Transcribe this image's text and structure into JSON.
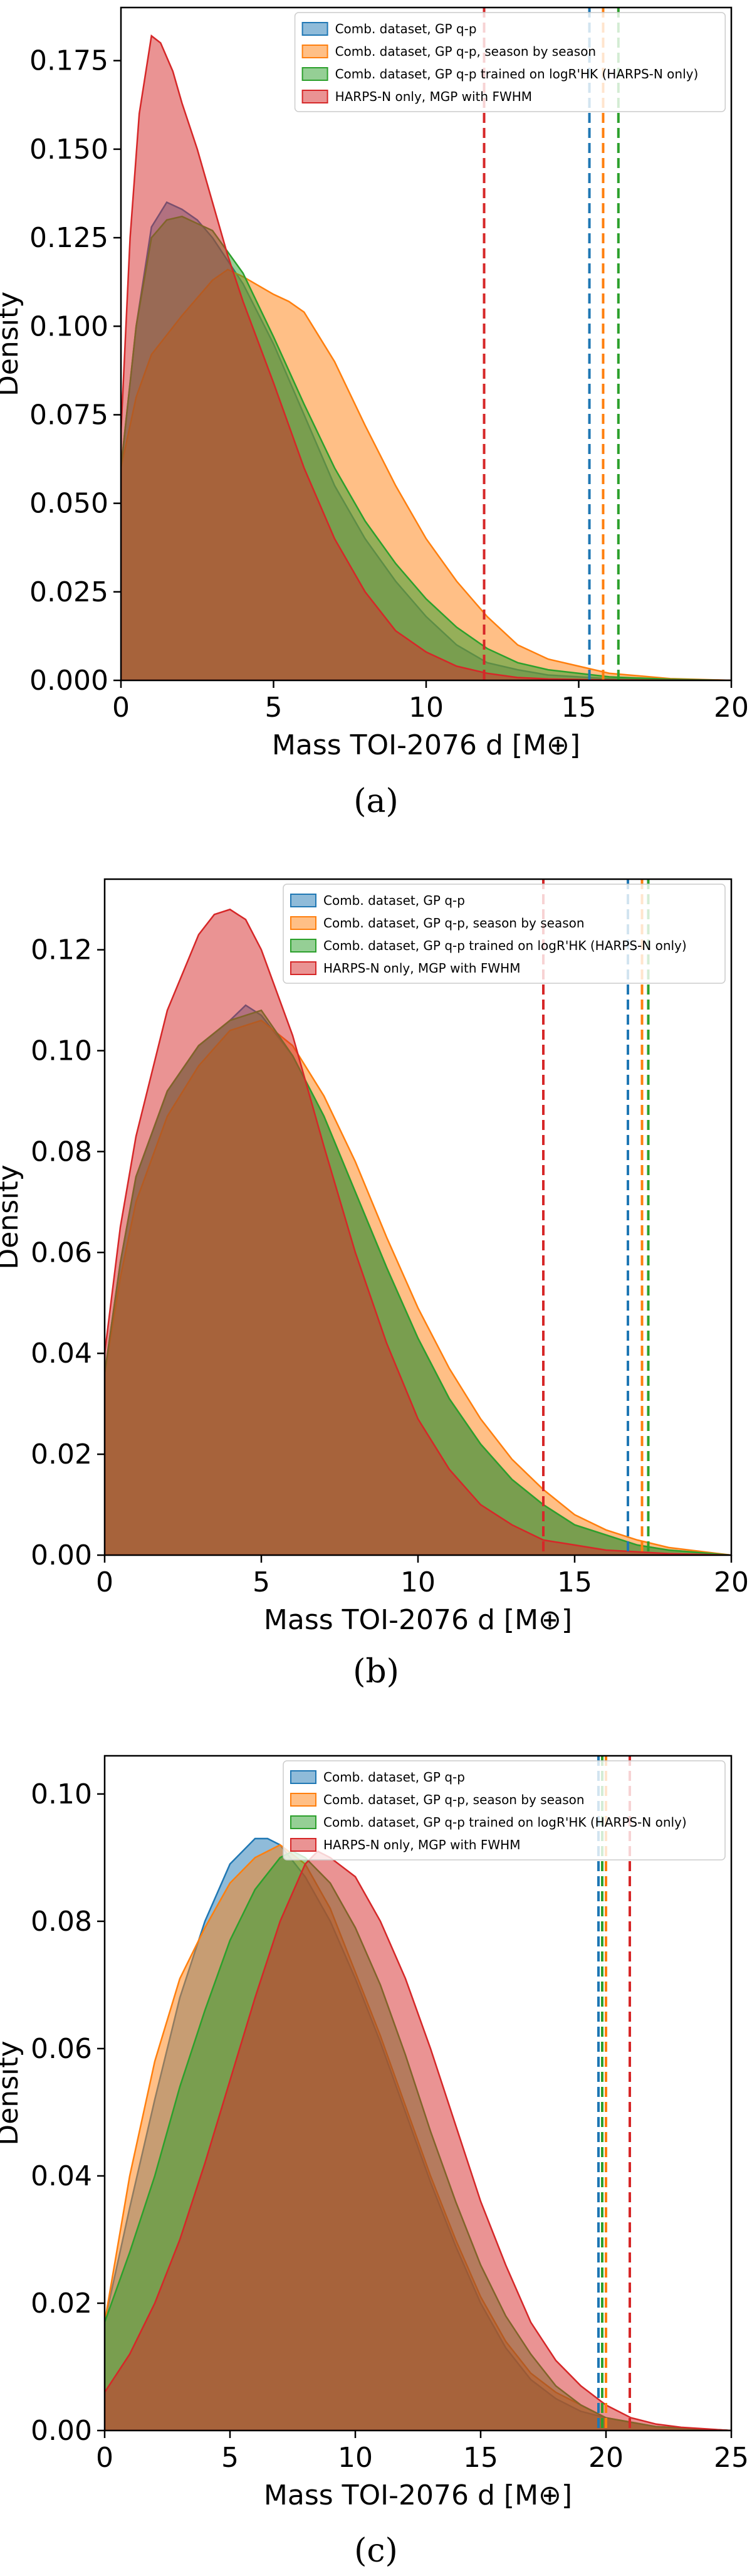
{
  "series_colors": {
    "blue": "#1f77b4",
    "orange": "#ff7f0e",
    "green": "#2ca02c",
    "red": "#d62728"
  },
  "chart_data": [
    {
      "type": "area",
      "caption": "(a)",
      "xlabel": "Mass TOI-2076 d [M⊕]",
      "ylabel": "Density",
      "xlim": [
        0,
        20
      ],
      "ylim": [
        0,
        0.19
      ],
      "xticks": [
        0,
        5,
        10,
        15,
        20
      ],
      "yticks": [
        0.0,
        0.025,
        0.05,
        0.075,
        0.1,
        0.125,
        0.15,
        0.175
      ],
      "ytick_labels": [
        "0.000",
        "0.025",
        "0.050",
        "0.075",
        "0.100",
        "0.125",
        "0.150",
        "0.175"
      ],
      "legend_position": "upper-right",
      "series": [
        {
          "name": "Comb. dataset, GP q-p",
          "color": "blue",
          "x": [
            0,
            0.5,
            1,
            1.5,
            2,
            2.5,
            3,
            4,
            5,
            6,
            7,
            8,
            9,
            10,
            11,
            12,
            13,
            14,
            16,
            18,
            20
          ],
          "y": [
            0.06,
            0.1,
            0.128,
            0.135,
            0.133,
            0.13,
            0.125,
            0.112,
            0.095,
            0.075,
            0.055,
            0.04,
            0.028,
            0.018,
            0.01,
            0.005,
            0.003,
            0.0015,
            0.0005,
            0.0002,
            0
          ]
        },
        {
          "name": "Comb. dataset, GP q-p, season by season",
          "color": "orange",
          "x": [
            0,
            0.5,
            1,
            2,
            2.5,
            3,
            3.5,
            4,
            5,
            5.5,
            6,
            7,
            8,
            9,
            10,
            11,
            12,
            13,
            14,
            15,
            16,
            18,
            20
          ],
          "y": [
            0.06,
            0.08,
            0.092,
            0.103,
            0.108,
            0.113,
            0.116,
            0.114,
            0.109,
            0.107,
            0.104,
            0.09,
            0.072,
            0.055,
            0.04,
            0.028,
            0.018,
            0.01,
            0.006,
            0.004,
            0.002,
            0.0005,
            0
          ]
        },
        {
          "name": "Comb. dataset, GP q-p trained on logR'HK (HARPS-N only)",
          "color": "green",
          "x": [
            0,
            0.5,
            1,
            1.5,
            2,
            3,
            4,
            5,
            6,
            7,
            8,
            9,
            10,
            11,
            12,
            13,
            14,
            16,
            18,
            20
          ],
          "y": [
            0.06,
            0.1,
            0.125,
            0.13,
            0.131,
            0.127,
            0.115,
            0.097,
            0.078,
            0.06,
            0.045,
            0.033,
            0.023,
            0.015,
            0.009,
            0.005,
            0.003,
            0.001,
            0.0003,
            0
          ]
        },
        {
          "name": "HARPS-N only, MGP with FWHM",
          "color": "red",
          "x": [
            0,
            0.3,
            0.6,
            1,
            1.3,
            1.7,
            2,
            2.5,
            3,
            3.5,
            4,
            5,
            6,
            7,
            8,
            9,
            10,
            11,
            12,
            13,
            14,
            16,
            20
          ],
          "y": [
            0.07,
            0.125,
            0.16,
            0.182,
            0.18,
            0.172,
            0.163,
            0.15,
            0.135,
            0.12,
            0.107,
            0.084,
            0.06,
            0.04,
            0.025,
            0.014,
            0.008,
            0.004,
            0.002,
            0.0008,
            0.0004,
            0.0001,
            0
          ]
        }
      ],
      "vlines": [
        {
          "color": "red",
          "x": 11.9
        },
        {
          "color": "blue",
          "x": 15.35
        },
        {
          "color": "orange",
          "x": 15.8
        },
        {
          "color": "green",
          "x": 16.3
        }
      ]
    },
    {
      "type": "area",
      "caption": "(b)",
      "xlabel": "Mass TOI-2076 d [M⊕]",
      "ylabel": "Density",
      "xlim": [
        0,
        20
      ],
      "ylim": [
        0,
        0.134
      ],
      "xticks": [
        0,
        5,
        10,
        15,
        20
      ],
      "yticks": [
        0.0,
        0.02,
        0.04,
        0.06,
        0.08,
        0.1,
        0.12
      ],
      "ytick_labels": [
        "0.00",
        "0.02",
        "0.04",
        "0.06",
        "0.08",
        "0.10",
        "0.12"
      ],
      "legend_position": "upper-right",
      "series": [
        {
          "name": "Comb. dataset, GP q-p",
          "color": "blue",
          "x": [
            0,
            0.5,
            1,
            2,
            3,
            4,
            4.5,
            5,
            6,
            7,
            8,
            9,
            10,
            11,
            12,
            13,
            14,
            15,
            16,
            17,
            18,
            20
          ],
          "y": [
            0.036,
            0.058,
            0.075,
            0.092,
            0.101,
            0.106,
            0.109,
            0.107,
            0.099,
            0.087,
            0.072,
            0.057,
            0.043,
            0.031,
            0.022,
            0.015,
            0.01,
            0.006,
            0.004,
            0.002,
            0.001,
            0
          ]
        },
        {
          "name": "Comb. dataset, GP q-p, season by season",
          "color": "orange",
          "x": [
            0,
            0.5,
            1,
            2,
            3,
            4,
            5,
            6,
            7,
            8,
            9,
            10,
            11,
            12,
            13,
            14,
            15,
            16,
            17,
            18,
            20
          ],
          "y": [
            0.036,
            0.055,
            0.07,
            0.087,
            0.097,
            0.104,
            0.106,
            0.101,
            0.091,
            0.078,
            0.063,
            0.049,
            0.037,
            0.027,
            0.019,
            0.013,
            0.008,
            0.005,
            0.003,
            0.0015,
            0
          ]
        },
        {
          "name": "Comb. dataset, GP q-p trained on logR'HK (HARPS-N only)",
          "color": "green",
          "x": [
            0,
            0.5,
            1,
            2,
            3,
            4,
            5,
            6,
            7,
            8,
            9,
            10,
            11,
            12,
            13,
            14,
            15,
            16,
            17,
            18,
            20
          ],
          "y": [
            0.036,
            0.058,
            0.075,
            0.092,
            0.101,
            0.106,
            0.108,
            0.099,
            0.087,
            0.072,
            0.057,
            0.043,
            0.031,
            0.022,
            0.015,
            0.01,
            0.006,
            0.004,
            0.002,
            0.001,
            0
          ]
        },
        {
          "name": "HARPS-N only, MGP with FWHM",
          "color": "red",
          "x": [
            0,
            0.5,
            1,
            2,
            3,
            3.5,
            4,
            4.5,
            5,
            6,
            7,
            8,
            9,
            10,
            11,
            12,
            13,
            14,
            15,
            16,
            18,
            20
          ],
          "y": [
            0.04,
            0.065,
            0.083,
            0.108,
            0.123,
            0.127,
            0.128,
            0.126,
            0.12,
            0.103,
            0.081,
            0.06,
            0.042,
            0.027,
            0.017,
            0.01,
            0.006,
            0.003,
            0.002,
            0.001,
            0.0003,
            0
          ]
        }
      ],
      "vlines": [
        {
          "color": "red",
          "x": 14.0
        },
        {
          "color": "blue",
          "x": 16.7
        },
        {
          "color": "orange",
          "x": 17.15
        },
        {
          "color": "green",
          "x": 17.35
        }
      ]
    },
    {
      "type": "area",
      "caption": "(c)",
      "xlabel": "Mass TOI-2076 d [M⊕]",
      "ylabel": "Density",
      "xlim": [
        0,
        25
      ],
      "ylim": [
        0,
        0.106
      ],
      "xticks": [
        0,
        5,
        10,
        15,
        20,
        25
      ],
      "yticks": [
        0.0,
        0.02,
        0.04,
        0.06,
        0.08,
        0.1
      ],
      "ytick_labels": [
        "0.00",
        "0.02",
        "0.04",
        "0.06",
        "0.08",
        "0.10"
      ],
      "legend_position": "upper-right",
      "series": [
        {
          "name": "Comb. dataset, GP q-p",
          "color": "blue",
          "x": [
            0,
            1,
            2,
            3,
            4,
            5,
            6,
            6.5,
            7,
            8,
            9,
            10,
            11,
            12,
            13,
            14,
            15,
            16,
            17,
            18,
            19,
            20,
            22,
            25
          ],
          "y": [
            0.017,
            0.035,
            0.052,
            0.068,
            0.08,
            0.089,
            0.093,
            0.093,
            0.092,
            0.087,
            0.08,
            0.071,
            0.061,
            0.05,
            0.039,
            0.029,
            0.02,
            0.013,
            0.008,
            0.005,
            0.003,
            0.002,
            0.0006,
            0
          ]
        },
        {
          "name": "Comb. dataset, GP q-p, season by season",
          "color": "orange",
          "x": [
            0,
            1,
            2,
            3,
            4,
            5,
            6,
            7,
            8,
            9,
            10,
            11,
            12,
            13,
            14,
            15,
            16,
            17,
            18,
            19,
            20,
            22,
            25
          ],
          "y": [
            0.017,
            0.04,
            0.058,
            0.071,
            0.079,
            0.086,
            0.09,
            0.092,
            0.089,
            0.082,
            0.072,
            0.062,
            0.051,
            0.04,
            0.03,
            0.021,
            0.014,
            0.009,
            0.006,
            0.004,
            0.002,
            0.0006,
            0
          ]
        },
        {
          "name": "Comb. dataset, GP q-p trained on logR'HK (HARPS-N only)",
          "color": "green",
          "x": [
            0,
            1,
            2,
            3,
            4,
            5,
            6,
            7,
            7.5,
            8,
            9,
            10,
            11,
            12,
            13,
            14,
            15,
            16,
            17,
            18,
            19,
            20,
            22,
            25
          ],
          "y": [
            0.017,
            0.028,
            0.04,
            0.054,
            0.066,
            0.077,
            0.085,
            0.09,
            0.091,
            0.09,
            0.086,
            0.079,
            0.07,
            0.059,
            0.047,
            0.036,
            0.026,
            0.018,
            0.012,
            0.007,
            0.004,
            0.002,
            0.0006,
            0
          ]
        },
        {
          "name": "HARPS-N only, MGP with FWHM",
          "color": "red",
          "x": [
            0,
            1,
            2,
            3,
            4,
            5,
            6,
            7,
            8,
            8.5,
            9,
            10,
            11,
            12,
            13,
            14,
            15,
            16,
            17,
            18,
            19,
            20,
            21,
            22,
            23,
            25
          ],
          "y": [
            0.006,
            0.012,
            0.02,
            0.03,
            0.042,
            0.055,
            0.068,
            0.08,
            0.089,
            0.091,
            0.09,
            0.087,
            0.08,
            0.071,
            0.06,
            0.048,
            0.036,
            0.026,
            0.017,
            0.011,
            0.007,
            0.004,
            0.002,
            0.001,
            0.0005,
            0
          ]
        }
      ],
      "vlines": [
        {
          "color": "blue",
          "x": 19.7
        },
        {
          "color": "green",
          "x": 19.85
        },
        {
          "color": "orange",
          "x": 20.0
        },
        {
          "color": "red",
          "x": 20.95
        }
      ]
    }
  ]
}
